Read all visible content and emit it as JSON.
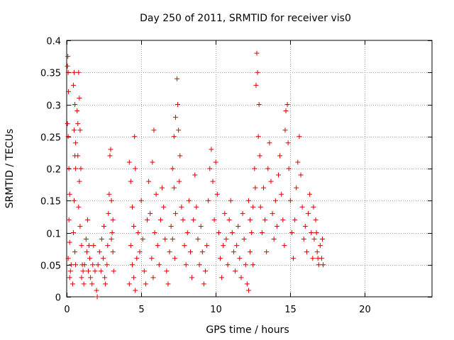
{
  "chart_data": {
    "type": "scatter",
    "title": "Day 250 of 2011, SRMTID for receiver vis0",
    "xlabel": "GPS time / hours",
    "ylabel": "SRMTID / TECUs",
    "xlim": [
      0,
      24.5
    ],
    "ylim": [
      0,
      0.4
    ],
    "xticks": [
      0,
      5,
      10,
      15,
      20
    ],
    "yticks": [
      0,
      0.05,
      0.1,
      0.15,
      0.2,
      0.25,
      0.3,
      0.35,
      0.4
    ],
    "xtick_labels": [
      "0",
      "5",
      "10",
      "15",
      "20"
    ],
    "ytick_labels": [
      "0",
      "0.05",
      "0.1",
      "0.15",
      "0.2",
      "0.25",
      "0.3",
      "0.35",
      "0.4"
    ],
    "grid": true,
    "marker": "plus",
    "color": "#e00000",
    "series": [
      {
        "name": "vis0",
        "points": [
          [
            0.05,
            0.36
          ],
          [
            0.08,
            0.375
          ],
          [
            0.1,
            0.35
          ],
          [
            0.12,
            0.32
          ],
          [
            0.05,
            0.27
          ],
          [
            0.1,
            0.25
          ],
          [
            0.15,
            0.2
          ],
          [
            0.2,
            0.16
          ],
          [
            0.15,
            0.12
          ],
          [
            0.2,
            0.085
          ],
          [
            0.1,
            0.06
          ],
          [
            0.25,
            0.04
          ],
          [
            0.3,
            0.05
          ],
          [
            0.2,
            0.03
          ],
          [
            0.4,
            0.02
          ],
          [
            0.45,
            0.33
          ],
          [
            0.5,
            0.35
          ],
          [
            0.55,
            0.3
          ],
          [
            0.5,
            0.26
          ],
          [
            0.6,
            0.24
          ],
          [
            0.55,
            0.22
          ],
          [
            0.6,
            0.2
          ],
          [
            0.5,
            0.15
          ],
          [
            0.45,
            0.1
          ],
          [
            0.55,
            0.07
          ],
          [
            0.6,
            0.05
          ],
          [
            0.7,
            0.29
          ],
          [
            0.75,
            0.27
          ],
          [
            0.8,
            0.35
          ],
          [
            0.85,
            0.31
          ],
          [
            0.9,
            0.26
          ],
          [
            0.75,
            0.22
          ],
          [
            0.85,
            0.18
          ],
          [
            0.95,
            0.2
          ],
          [
            0.8,
            0.14
          ],
          [
            0.9,
            0.11
          ],
          [
            1.0,
            0.08
          ],
          [
            1.05,
            0.05
          ],
          [
            1.1,
            0.04
          ],
          [
            1.0,
            0.03
          ],
          [
            1.15,
            0.02
          ],
          [
            1.2,
            0.05
          ],
          [
            1.3,
            0.09
          ],
          [
            1.35,
            0.07
          ],
          [
            1.4,
            0.12
          ],
          [
            1.5,
            0.08
          ],
          [
            1.45,
            0.04
          ],
          [
            1.55,
            0.06
          ],
          [
            1.6,
            0.03
          ],
          [
            1.7,
            0.02
          ],
          [
            1.75,
            0.05
          ],
          [
            1.8,
            0.08
          ],
          [
            1.9,
            0.04
          ],
          [
            2.0,
            0.01
          ],
          [
            2.05,
            0.0
          ],
          [
            2.1,
            0.05
          ],
          [
            2.2,
            0.07
          ],
          [
            2.3,
            0.04
          ],
          [
            2.35,
            0.09
          ],
          [
            2.45,
            0.06
          ],
          [
            2.5,
            0.11
          ],
          [
            2.55,
            0.03
          ],
          [
            2.6,
            0.02
          ],
          [
            2.7,
            0.05
          ],
          [
            2.75,
            0.08
          ],
          [
            2.8,
            0.13
          ],
          [
            2.85,
            0.16
          ],
          [
            2.9,
            0.22
          ],
          [
            2.95,
            0.23
          ],
          [
            3.0,
            0.15
          ],
          [
            3.05,
            0.1
          ],
          [
            3.1,
            0.07
          ],
          [
            3.15,
            0.04
          ],
          [
            3.1,
            0.12
          ],
          [
            3.0,
            0.09
          ],
          [
            4.2,
            0.21
          ],
          [
            4.3,
            0.18
          ],
          [
            4.4,
            0.14
          ],
          [
            4.5,
            0.11
          ],
          [
            4.55,
            0.25
          ],
          [
            4.6,
            0.2
          ],
          [
            4.3,
            0.08
          ],
          [
            4.4,
            0.05
          ],
          [
            4.5,
            0.03
          ],
          [
            4.2,
            0.02
          ],
          [
            4.6,
            0.01
          ],
          [
            4.7,
            0.06
          ],
          [
            4.8,
            0.1
          ],
          [
            4.9,
            0.07
          ],
          [
            5.0,
            0.15
          ],
          [
            5.1,
            0.09
          ],
          [
            5.2,
            0.04
          ],
          [
            5.3,
            0.02
          ],
          [
            5.4,
            0.12
          ],
          [
            5.5,
            0.18
          ],
          [
            5.6,
            0.13
          ],
          [
            5.7,
            0.06
          ],
          [
            5.8,
            0.03
          ],
          [
            5.9,
            0.1
          ],
          [
            6.0,
            0.16
          ],
          [
            5.75,
            0.21
          ],
          [
            5.85,
            0.26
          ],
          [
            6.1,
            0.08
          ],
          [
            6.2,
            0.05
          ],
          [
            6.3,
            0.12
          ],
          [
            6.4,
            0.17
          ],
          [
            6.5,
            0.14
          ],
          [
            6.6,
            0.09
          ],
          [
            6.7,
            0.04
          ],
          [
            6.8,
            0.02
          ],
          [
            6.9,
            0.07
          ],
          [
            7.0,
            0.11
          ],
          [
            7.1,
            0.2
          ],
          [
            7.2,
            0.25
          ],
          [
            7.3,
            0.28
          ],
          [
            7.4,
            0.34
          ],
          [
            7.45,
            0.3
          ],
          [
            7.5,
            0.26
          ],
          [
            7.6,
            0.22
          ],
          [
            7.55,
            0.18
          ],
          [
            7.7,
            0.14
          ],
          [
            7.8,
            0.12
          ],
          [
            7.9,
            0.08
          ],
          [
            7.2,
            0.17
          ],
          [
            7.3,
            0.13
          ],
          [
            7.1,
            0.09
          ],
          [
            7.25,
            0.06
          ],
          [
            8.0,
            0.05
          ],
          [
            8.1,
            0.1
          ],
          [
            8.2,
            0.15
          ],
          [
            8.3,
            0.07
          ],
          [
            8.4,
            0.03
          ],
          [
            8.5,
            0.12
          ],
          [
            8.6,
            0.19
          ],
          [
            8.7,
            0.14
          ],
          [
            8.8,
            0.09
          ],
          [
            8.9,
            0.05
          ],
          [
            9.0,
            0.11
          ],
          [
            9.1,
            0.07
          ],
          [
            9.2,
            0.02
          ],
          [
            9.3,
            0.04
          ],
          [
            9.4,
            0.08
          ],
          [
            9.5,
            0.15
          ],
          [
            9.6,
            0.2
          ],
          [
            9.7,
            0.23
          ],
          [
            9.8,
            0.18
          ],
          [
            9.9,
            0.12
          ],
          [
            10.0,
            0.21
          ],
          [
            10.1,
            0.16
          ],
          [
            10.2,
            0.1
          ],
          [
            10.3,
            0.06
          ],
          [
            10.4,
            0.03
          ],
          [
            10.5,
            0.08
          ],
          [
            10.6,
            0.13
          ],
          [
            10.7,
            0.09
          ],
          [
            10.8,
            0.05
          ],
          [
            10.9,
            0.12
          ],
          [
            11.0,
            0.15
          ],
          [
            11.1,
            0.1
          ],
          [
            11.2,
            0.07
          ],
          [
            11.3,
            0.04
          ],
          [
            11.4,
            0.08
          ],
          [
            11.5,
            0.11
          ],
          [
            11.6,
            0.06
          ],
          [
            11.7,
            0.03
          ],
          [
            11.8,
            0.13
          ],
          [
            11.9,
            0.09
          ],
          [
            12.0,
            0.05
          ],
          [
            12.1,
            0.02
          ],
          [
            12.2,
            0.01
          ],
          [
            12.3,
            0.07
          ],
          [
            12.4,
            0.1
          ],
          [
            12.5,
            0.14
          ],
          [
            12.6,
            0.2
          ],
          [
            12.7,
            0.33
          ],
          [
            12.75,
            0.38
          ],
          [
            12.8,
            0.35
          ],
          [
            12.9,
            0.3
          ],
          [
            12.85,
            0.25
          ],
          [
            12.95,
            0.22
          ],
          [
            12.65,
            0.17
          ],
          [
            12.5,
            0.05
          ],
          [
            12.3,
            0.12
          ],
          [
            12.2,
            0.15
          ],
          [
            13.0,
            0.14
          ],
          [
            13.1,
            0.1
          ],
          [
            13.2,
            0.17
          ],
          [
            13.3,
            0.12
          ],
          [
            13.4,
            0.07
          ],
          [
            13.5,
            0.2
          ],
          [
            13.6,
            0.24
          ],
          [
            13.7,
            0.18
          ],
          [
            13.8,
            0.13
          ],
          [
            13.9,
            0.09
          ],
          [
            14.0,
            0.15
          ],
          [
            14.1,
            0.11
          ],
          [
            14.2,
            0.19
          ],
          [
            14.3,
            0.22
          ],
          [
            14.4,
            0.16
          ],
          [
            14.5,
            0.12
          ],
          [
            14.6,
            0.08
          ],
          [
            14.65,
            0.26
          ],
          [
            14.7,
            0.29
          ],
          [
            14.8,
            0.3
          ],
          [
            14.85,
            0.24
          ],
          [
            14.9,
            0.2
          ],
          [
            15.0,
            0.15
          ],
          [
            15.1,
            0.1
          ],
          [
            15.2,
            0.06
          ],
          [
            15.3,
            0.12
          ],
          [
            15.4,
            0.17
          ],
          [
            15.5,
            0.21
          ],
          [
            15.6,
            0.25
          ],
          [
            15.7,
            0.19
          ],
          [
            15.8,
            0.14
          ],
          [
            15.9,
            0.09
          ],
          [
            16.0,
            0.11
          ],
          [
            16.1,
            0.07
          ],
          [
            16.2,
            0.13
          ],
          [
            16.3,
            0.16
          ],
          [
            16.4,
            0.1
          ],
          [
            16.5,
            0.06
          ],
          [
            16.6,
            0.09
          ],
          [
            16.7,
            0.12
          ],
          [
            16.8,
            0.07
          ],
          [
            16.9,
            0.05
          ],
          [
            17.0,
            0.08
          ],
          [
            17.1,
            0.06
          ],
          [
            17.2,
            0.05
          ],
          [
            16.75,
            0.1
          ],
          [
            16.55,
            0.14
          ],
          [
            16.85,
            0.06
          ],
          [
            17.15,
            0.09
          ]
        ]
      }
    ]
  }
}
